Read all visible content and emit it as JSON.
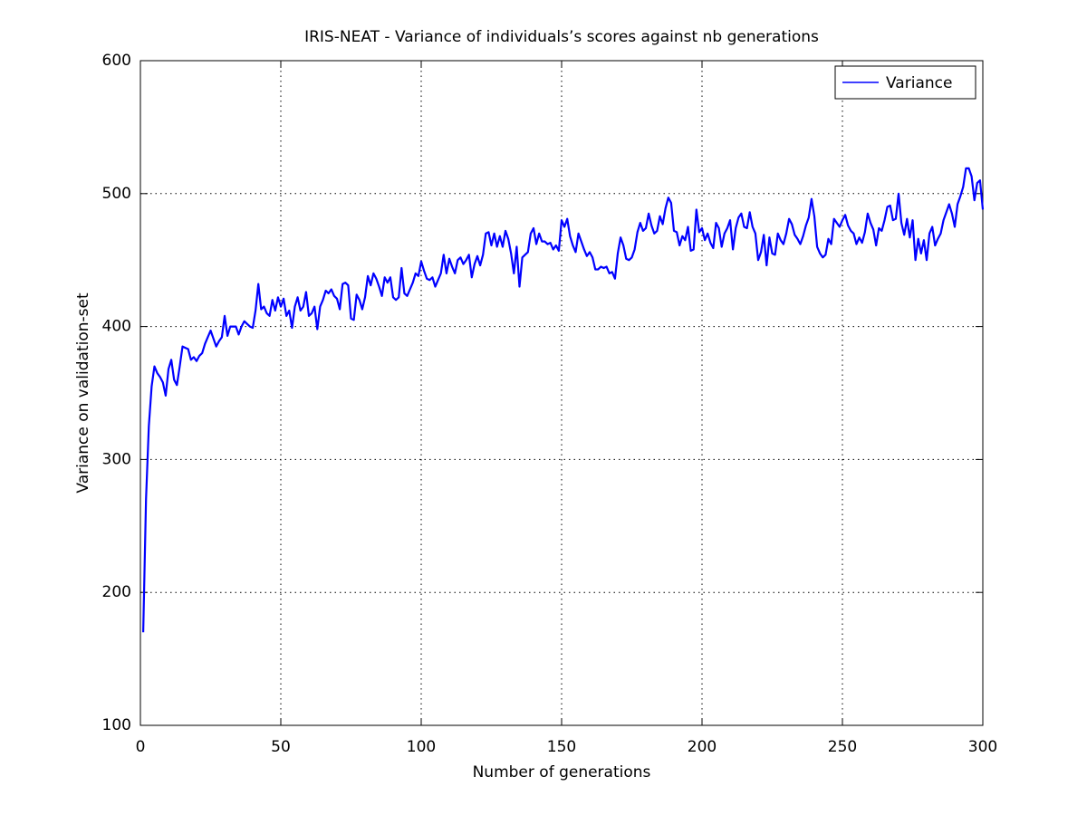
{
  "chart_data": {
    "type": "line",
    "title": "IRIS-NEAT - Variance of individuals’s scores against nb generations",
    "x_label": "Number of generations",
    "y_label": "Variance on validation-set",
    "xlim": [
      0,
      300
    ],
    "xticks": [
      0,
      50,
      100,
      150,
      200,
      250,
      300
    ],
    "ylim": [
      100,
      600
    ],
    "yticks": [
      100,
      200,
      300,
      400,
      500,
      600
    ],
    "grid": true,
    "legend_position": "upper-right",
    "x": [
      1,
      2,
      3,
      4,
      5,
      6,
      7,
      8,
      9,
      10,
      11,
      12,
      13,
      14,
      15,
      16,
      17,
      18,
      19,
      20,
      21,
      22,
      23,
      24,
      25,
      26,
      27,
      28,
      29,
      30,
      31,
      32,
      33,
      34,
      35,
      36,
      37,
      38,
      39,
      40,
      41,
      42,
      43,
      44,
      45,
      46,
      47,
      48,
      49,
      50,
      51,
      52,
      53,
      54,
      55,
      56,
      57,
      58,
      59,
      60,
      61,
      62,
      63,
      64,
      65,
      66,
      67,
      68,
      69,
      70,
      71,
      72,
      73,
      74,
      75,
      76,
      77,
      78,
      79,
      80,
      81,
      82,
      83,
      84,
      85,
      86,
      87,
      88,
      89,
      90,
      91,
      92,
      93,
      94,
      95,
      96,
      97,
      98,
      99,
      100,
      101,
      102,
      103,
      104,
      105,
      106,
      107,
      108,
      109,
      110,
      111,
      112,
      113,
      114,
      115,
      116,
      117,
      118,
      119,
      120,
      121,
      122,
      123,
      124,
      125,
      126,
      127,
      128,
      129,
      130,
      131,
      132,
      133,
      134,
      135,
      136,
      137,
      138,
      139,
      140,
      141,
      142,
      143,
      144,
      145,
      146,
      147,
      148,
      149,
      150,
      151,
      152,
      153,
      154,
      155,
      156,
      157,
      158,
      159,
      160,
      161,
      162,
      163,
      164,
      165,
      166,
      167,
      168,
      169,
      170,
      171,
      172,
      173,
      174,
      175,
      176,
      177,
      178,
      179,
      180,
      181,
      182,
      183,
      184,
      185,
      186,
      187,
      188,
      189,
      190,
      191,
      192,
      193,
      194,
      195,
      196,
      197,
      198,
      199,
      200,
      201,
      202,
      203,
      204,
      205,
      206,
      207,
      208,
      209,
      210,
      211,
      212,
      213,
      214,
      215,
      216,
      217,
      218,
      219,
      220,
      221,
      222,
      223,
      224,
      225,
      226,
      227,
      228,
      229,
      230,
      231,
      232,
      233,
      234,
      235,
      236,
      237,
      238,
      239,
      240,
      241,
      242,
      243,
      244,
      245,
      246,
      247,
      248,
      249,
      250,
      251,
      252,
      253,
      254,
      255,
      256,
      257,
      258,
      259,
      260,
      261,
      262,
      263,
      264,
      265,
      266,
      267,
      268,
      269,
      270,
      271,
      272,
      273,
      274,
      275,
      276,
      277,
      278,
      279,
      280,
      281,
      282,
      283,
      284,
      285,
      286,
      287,
      288,
      289,
      290,
      291,
      292,
      293,
      294,
      295,
      296,
      297,
      298,
      299,
      300
    ],
    "series": [
      {
        "name": "Variance",
        "color": "#0000ff",
        "values": [
          170,
          270,
          325,
          355,
          370,
          365,
          362,
          358,
          348,
          368,
          375,
          360,
          356,
          370,
          385,
          384,
          383,
          375,
          377,
          374,
          378,
          380,
          387,
          392,
          397,
          391,
          385,
          389,
          392,
          408,
          393,
          400,
          400,
          400,
          394,
          400,
          404,
          402,
          400,
          399,
          412,
          432,
          413,
          415,
          410,
          408,
          420,
          412,
          422,
          415,
          421,
          408,
          412,
          399,
          415,
          422,
          412,
          415,
          426,
          408,
          410,
          415,
          398,
          415,
          420,
          427,
          425,
          428,
          423,
          421,
          413,
          432,
          433,
          431,
          406,
          405,
          424,
          420,
          413,
          422,
          438,
          431,
          440,
          436,
          430,
          423,
          437,
          433,
          437,
          422,
          420,
          422,
          444,
          425,
          423,
          428,
          433,
          440,
          438,
          449,
          442,
          436,
          435,
          437,
          430,
          435,
          440,
          454,
          440,
          451,
          445,
          440,
          450,
          452,
          447,
          450,
          454,
          437,
          447,
          453,
          446,
          454,
          470,
          471,
          461,
          470,
          460,
          468,
          460,
          472,
          466,
          455,
          440,
          460,
          430,
          452,
          454,
          456,
          470,
          474,
          462,
          470,
          464,
          464,
          462,
          463,
          458,
          461,
          457,
          480,
          475,
          481,
          468,
          461,
          456,
          470,
          464,
          458,
          453,
          456,
          452,
          443,
          443,
          445,
          444,
          445,
          440,
          441,
          436,
          455,
          467,
          461,
          451,
          450,
          452,
          458,
          471,
          478,
          472,
          474,
          485,
          476,
          470,
          472,
          483,
          477,
          489,
          497,
          493,
          472,
          471,
          461,
          468,
          465,
          475,
          457,
          458,
          488,
          471,
          474,
          465,
          470,
          463,
          459,
          478,
          474,
          460,
          470,
          474,
          480,
          458,
          474,
          482,
          485,
          475,
          474,
          486,
          475,
          470,
          450,
          456,
          469,
          446,
          467,
          455,
          454,
          470,
          465,
          462,
          470,
          481,
          477,
          469,
          466,
          462,
          468,
          476,
          482,
          496,
          483,
          460,
          455,
          452,
          454,
          466,
          462,
          481,
          478,
          475,
          480,
          484,
          476,
          472,
          470,
          462,
          467,
          463,
          471,
          485,
          478,
          473,
          461,
          474,
          472,
          480,
          490,
          491,
          480,
          481,
          500,
          478,
          469,
          481,
          467,
          480,
          450,
          466,
          455,
          465,
          450,
          470,
          475,
          461,
          466,
          470,
          480,
          486,
          492,
          485,
          475,
          492,
          498,
          505,
          519,
          519,
          513,
          495,
          508,
          510,
          488
        ]
      }
    ]
  }
}
